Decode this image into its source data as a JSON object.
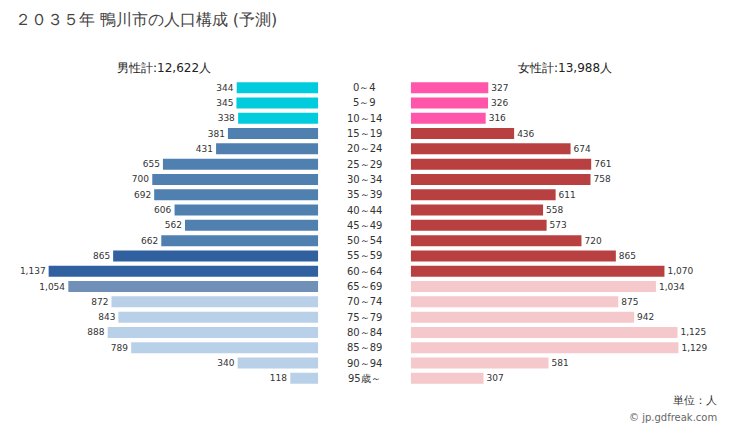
{
  "chart_data": {
    "type": "bar",
    "orientation": "horizontal",
    "title": "２０３５年 鴨川市の人口構成 (予測)",
    "annotations": [
      "男性計:12,622人",
      "女性計:13,988人",
      "単位：人",
      "© jp.gdfreak.com"
    ],
    "categories": [
      "95歳～",
      "90～94",
      "85～89",
      "80～84",
      "75～79",
      "70～74",
      "65～69",
      "60～64",
      "55～59",
      "50～54",
      "45～49",
      "40～44",
      "35～39",
      "30～34",
      "25～29",
      "20～24",
      "15～19",
      "10～14",
      "5～9",
      "0～4"
    ],
    "series": [
      {
        "values": [
          118,
          340,
          789,
          888,
          843,
          872,
          1054,
          1137,
          865,
          662,
          562,
          606,
          692,
          700,
          655,
          431,
          381,
          338,
          345,
          344
        ],
        "value_labels": [
          "118",
          "340",
          "789",
          "888",
          "843",
          "872",
          "1,054",
          "1,137",
          "865",
          "662",
          "562",
          "606",
          "692",
          "700",
          "655",
          "431",
          "381",
          "338",
          "345",
          "344"
        ],
        "colors": [
          "#b8d0e8",
          "#b8d0e8",
          "#b8d0e8",
          "#b8d0e8",
          "#b8d0e8",
          "#b8d0e8",
          "#7090b8",
          "#3060a0",
          "#3060a0",
          "#5080b0",
          "#5080b0",
          "#5080b0",
          "#5080b0",
          "#5080b0",
          "#5080b0",
          "#5080b0",
          "#5080b0",
          "#00ccdd",
          "#00ccdd",
          "#00ccdd"
        ]
      },
      {
        "values": [
          307,
          581,
          1129,
          1125,
          942,
          875,
          1034,
          1070,
          865,
          720,
          573,
          558,
          611,
          758,
          761,
          674,
          436,
          316,
          326,
          327
        ],
        "value_labels": [
          "307",
          "581",
          "1,129",
          "1,125",
          "942",
          "875",
          "1,034",
          "1,070",
          "865",
          "720",
          "573",
          "558",
          "611",
          "758",
          "761",
          "674",
          "436",
          "316",
          "326",
          "327"
        ],
        "colors": [
          "#f5c8cc",
          "#f5c8cc",
          "#f5c8cc",
          "#f5c8cc",
          "#f5c8cc",
          "#f5c8cc",
          "#f5c8cc",
          "#b84040",
          "#b84040",
          "#b84040",
          "#b84040",
          "#b84040",
          "#b84040",
          "#b84040",
          "#b84040",
          "#b84040",
          "#b84040",
          "#ff55aa",
          "#ff55aa",
          "#ff55aa"
        ]
      }
    ],
    "xlim": [
      0,
      1300
    ],
    "tick_labels": "y",
    "grid": false,
    "data_labels": true
  }
}
